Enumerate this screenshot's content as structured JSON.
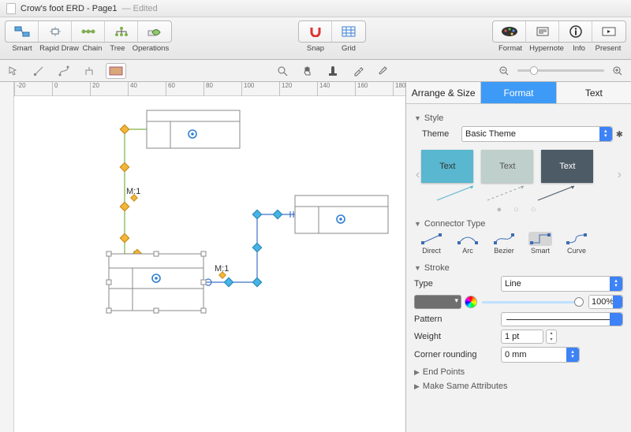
{
  "title": {
    "doc": "Crow's foot ERD - Page1",
    "suffix": " — Edited"
  },
  "toolbar": {
    "left": [
      "Smart",
      "Rapid Draw",
      "Chain",
      "Tree",
      "Operations"
    ],
    "mid": [
      "Snap",
      "Grid"
    ],
    "right": [
      "Format",
      "Hypernote",
      "Info",
      "Present"
    ]
  },
  "ruler_ticks": [
    -20,
    0,
    20,
    40,
    60,
    80,
    100,
    120,
    140,
    160,
    180
  ],
  "diagram": {
    "labels": {
      "m1a": "M:1",
      "m1b": "M:1"
    },
    "colors": {
      "entity_stroke": "#8a8a8a",
      "green_edge": "#7fb24a",
      "blue_edge": "#3a72c9",
      "diamond_orange": "#f2b63a",
      "diamond_blue": "#47b3e6",
      "handle": "#3aa6e8"
    }
  },
  "inspector": {
    "tabs": [
      "Arrange & Size",
      "Format",
      "Text"
    ],
    "active_tab": 1,
    "style": {
      "heading": "Style",
      "theme_label": "Theme",
      "theme_value": "Basic Theme",
      "swatch_text": "Text",
      "swatch_colors": [
        "#59b7cf",
        "#bfcfcc",
        "#4d5b66"
      ],
      "swatch_text_colors": [
        "#333333",
        "#555555",
        "#ffffff"
      ]
    },
    "connector": {
      "heading": "Connector Type",
      "types": [
        "Direct",
        "Arc",
        "Bezier",
        "Smart",
        "Curve"
      ],
      "selected": 3
    },
    "stroke": {
      "heading": "Stroke",
      "type_label": "Type",
      "type_value": "Line",
      "opacity": "100%",
      "pattern_label": "Pattern",
      "weight_label": "Weight",
      "weight_value": "1 pt",
      "corner_label": "Corner rounding",
      "corner_value": "0 mm"
    },
    "endpoints_heading": "End Points",
    "makesame_heading": "Make Same Attributes"
  }
}
